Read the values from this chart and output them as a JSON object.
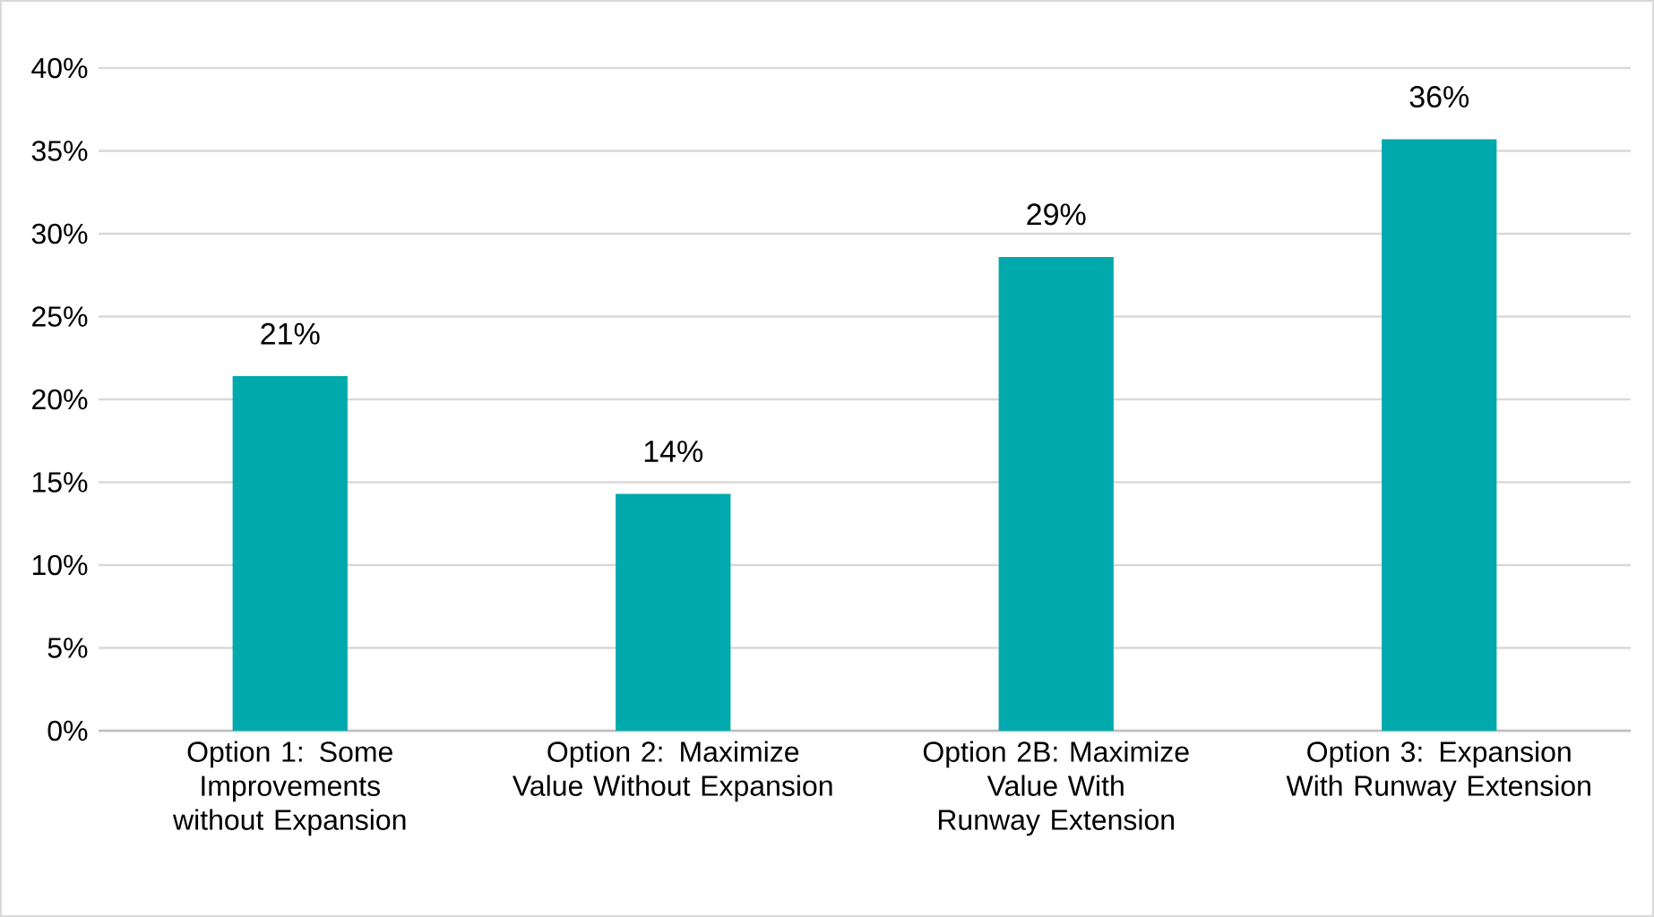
{
  "chart_data": {
    "type": "bar",
    "categories": [
      "Option 1:  Some Improvements without Expansion",
      "Option 2:  Maximize Value Without Expansion",
      "Option 2B:  Maximize Value With Runway Extension",
      "Option 3:  Expansion With Runway Extension"
    ],
    "values": [
      21.4,
      14.3,
      28.6,
      35.7
    ],
    "value_labels": [
      "21%",
      "14%",
      "29%",
      "36%"
    ],
    "color": "#00a9ac",
    "ylim": [
      0,
      40
    ],
    "yticks": [
      {
        "value": 0,
        "label": "0%"
      },
      {
        "value": 5,
        "label": "5%"
      },
      {
        "value": 10,
        "label": "10%"
      },
      {
        "value": 15,
        "label": "15%"
      },
      {
        "value": 20,
        "label": "20%"
      },
      {
        "value": 25,
        "label": "25%"
      },
      {
        "value": 30,
        "label": "30%"
      },
      {
        "value": 35,
        "label": "35%"
      },
      {
        "value": 40,
        "label": "40%"
      }
    ],
    "grid": "y"
  }
}
